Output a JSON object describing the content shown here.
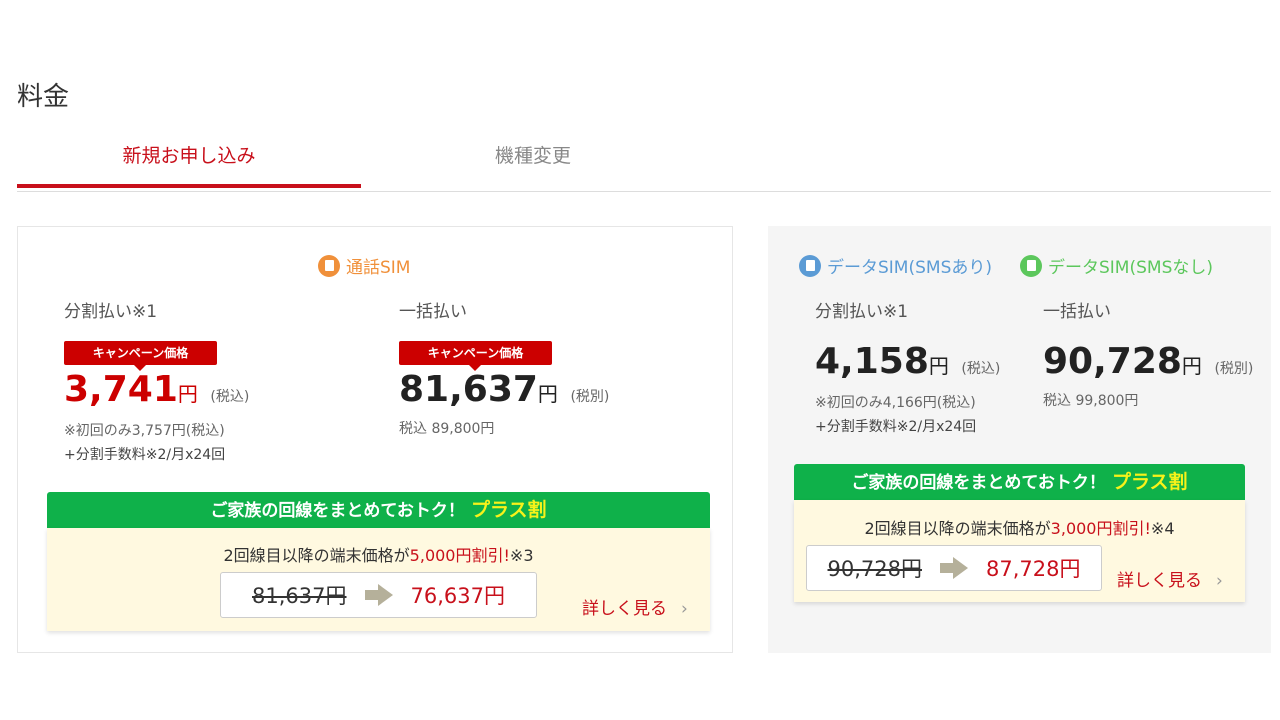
{
  "page": {
    "title": "料金"
  },
  "tabs": [
    {
      "label": "新規お申し込み",
      "active": true
    },
    {
      "label": "機種変更",
      "active": false
    }
  ],
  "colors": {
    "accent": "#c8101b",
    "green": "#0fb14a",
    "voice_sim": "#f0903a",
    "data_sms": "#5b9bd5",
    "data_nosms": "#5cc75c"
  },
  "voice": {
    "sim_label": "通話SIM",
    "icon": "sim-card-icon",
    "installment": {
      "label": "分割払い※1",
      "badge": "キャンペーン価格",
      "price": "3,741",
      "yen": "円",
      "tax": "(税込)",
      "note1": "※初回のみ3,757円(税込)",
      "note2": "+分割手数料※2/月x24回"
    },
    "lump": {
      "label": "一括払い",
      "badge": "キャンペーン価格",
      "price": "81,637",
      "yen": "円",
      "tax": "(税別)",
      "note1": "税込 89,800円"
    },
    "promo": {
      "banner": "ご家族の回線をまとめておトク！",
      "banner_highlight": "プラス割",
      "msg_pre": "2回線目以降の端末価格が",
      "msg_red": "5,000円割引!",
      "msg_post": "※3",
      "old": "81,637円",
      "new": "76,637円",
      "link": "詳しく見る",
      "chevron": "›"
    }
  },
  "data": {
    "sim_label_sms": "データSIM(SMSあり)",
    "sim_label_nosms": "データSIM(SMSなし)",
    "installment": {
      "label": "分割払い※1",
      "price": "4,158",
      "yen": "円",
      "tax": "(税込)",
      "note1": "※初回のみ4,166円(税込)",
      "note2": "+分割手数料※2/月x24回"
    },
    "lump": {
      "label": "一括払い",
      "price": "90,728",
      "yen": "円",
      "tax": "(税別)",
      "note1": "税込 99,800円"
    },
    "promo": {
      "banner": "ご家族の回線をまとめておトク！",
      "banner_highlight": "プラス割",
      "msg_pre": "2回線目以降の端末価格が",
      "msg_red": "3,000円割引!",
      "msg_post": "※4",
      "old": "90,728円",
      "new": "87,728円",
      "link": "詳しく見る",
      "chevron": "›"
    }
  }
}
